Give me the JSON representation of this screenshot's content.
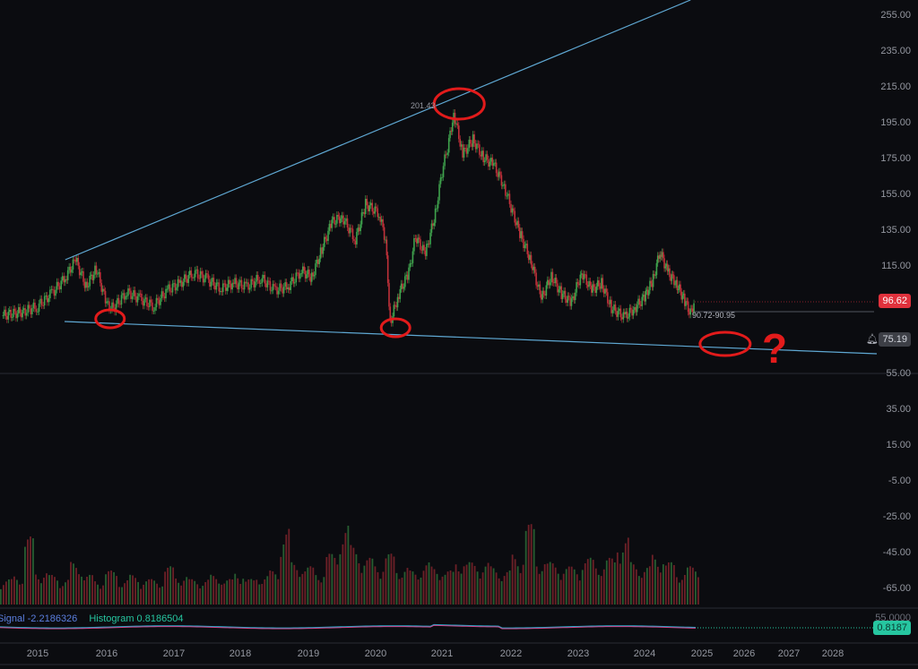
{
  "chart_data": {
    "type": "candlestick",
    "title": "",
    "y_axis": {
      "ticks": [
        "255.00",
        "235.00",
        "215.00",
        "195.00",
        "175.00",
        "155.00",
        "135.00",
        "115.00",
        "75.19",
        "55.00",
        "35.00",
        "15.00",
        "-5.00",
        "-25.00",
        "-45.00",
        "-65.00"
      ],
      "range": [
        -75,
        265
      ]
    },
    "y_tick_values": [
      255,
      235,
      215,
      195,
      175,
      155,
      135,
      115,
      95,
      75,
      55,
      35,
      15,
      -5,
      -25,
      -45,
      -65
    ],
    "x_axis": {
      "ticks": [
        "2015",
        "2016",
        "2017",
        "2018",
        "2019",
        "2020",
        "2021",
        "2022",
        "2023",
        "2024",
        "2025",
        "2026",
        "2027",
        "2028"
      ]
    },
    "price_series": [
      [
        2014.5,
        88
      ],
      [
        2014.8,
        90
      ],
      [
        2015.0,
        93
      ],
      [
        2015.2,
        100
      ],
      [
        2015.4,
        109
      ],
      [
        2015.55,
        119
      ],
      [
        2015.7,
        104
      ],
      [
        2015.85,
        114
      ],
      [
        2016.0,
        94
      ],
      [
        2016.1,
        92
      ],
      [
        2016.3,
        101
      ],
      [
        2016.5,
        97
      ],
      [
        2016.7,
        93
      ],
      [
        2016.9,
        102
      ],
      [
        2017.1,
        106
      ],
      [
        2017.3,
        112
      ],
      [
        2017.5,
        108
      ],
      [
        2017.7,
        103
      ],
      [
        2017.9,
        106
      ],
      [
        2018.1,
        104
      ],
      [
        2018.3,
        109
      ],
      [
        2018.5,
        102
      ],
      [
        2018.7,
        104
      ],
      [
        2018.9,
        113
      ],
      [
        2019.05,
        109
      ],
      [
        2019.2,
        125
      ],
      [
        2019.35,
        140
      ],
      [
        2019.5,
        143
      ],
      [
        2019.7,
        130
      ],
      [
        2019.85,
        150
      ],
      [
        2020.05,
        145
      ],
      [
        2020.15,
        130
      ],
      [
        2020.22,
        84
      ],
      [
        2020.35,
        100
      ],
      [
        2020.5,
        112
      ],
      [
        2020.6,
        132
      ],
      [
        2020.75,
        122
      ],
      [
        2020.9,
        145
      ],
      [
        2021.0,
        168
      ],
      [
        2021.1,
        185
      ],
      [
        2021.17,
        201
      ],
      [
        2021.3,
        178
      ],
      [
        2021.45,
        186
      ],
      [
        2021.6,
        176
      ],
      [
        2021.75,
        172
      ],
      [
        2021.9,
        160
      ],
      [
        2022.0,
        148
      ],
      [
        2022.15,
        132
      ],
      [
        2022.3,
        118
      ],
      [
        2022.45,
        97
      ],
      [
        2022.6,
        110
      ],
      [
        2022.75,
        100
      ],
      [
        2022.9,
        95
      ],
      [
        2023.05,
        112
      ],
      [
        2023.2,
        102
      ],
      [
        2023.35,
        106
      ],
      [
        2023.5,
        92
      ],
      [
        2023.7,
        87
      ],
      [
        2023.85,
        92
      ],
      [
        2024.0,
        98
      ],
      [
        2024.15,
        108
      ],
      [
        2024.27,
        124
      ],
      [
        2024.4,
        112
      ],
      [
        2024.55,
        106
      ],
      [
        2024.7,
        96
      ],
      [
        2024.8,
        89
      ],
      [
        2024.88,
        96.62
      ]
    ],
    "volume_relative": [
      0.3,
      0.35,
      0.8,
      0.4,
      0.35,
      0.3,
      0.5,
      0.35,
      0.3,
      0.4,
      0.3,
      0.35,
      0.3,
      0.3,
      0.45,
      0.35,
      0.3,
      0.3,
      0.35,
      0.3,
      0.4,
      0.3,
      0.35,
      0.4,
      0.9,
      0.5,
      0.45,
      0.4,
      0.6,
      0.95,
      0.7,
      0.55,
      0.5,
      0.6,
      0.45,
      0.4,
      0.5,
      0.45,
      0.4,
      0.55,
      0.5,
      0.5,
      0.45,
      0.4,
      0.6,
      0.95,
      0.55,
      0.5,
      0.45,
      0.45,
      0.55,
      0.5,
      0.55,
      0.8,
      0.5,
      0.45,
      0.6,
      0.5,
      0.4,
      0.45
    ],
    "trendlines": [
      {
        "from": [
          2015.4,
          119
        ],
        "to": [
          2024.8,
          264
        ],
        "color": "#5fa8d3"
      },
      {
        "from": [
          2015.39,
          84.5
        ],
        "to": [
          2029.0,
          66.5
        ],
        "color": "#5fa8d3"
      }
    ],
    "annotations": [
      {
        "type": "ellipse",
        "at": [
          2021.25,
          206
        ],
        "color": "#e21b1b"
      },
      {
        "type": "ellipse",
        "at": [
          2016.05,
          86
        ],
        "color": "#e21b1b"
      },
      {
        "type": "ellipse",
        "at": [
          2020.3,
          81
        ],
        "color": "#e21b1b"
      },
      {
        "type": "ellipse",
        "at": [
          2025.55,
          72
        ],
        "color": "#e21b1b"
      }
    ],
    "peak_label": "201.43",
    "range_label": "90.72-90.95",
    "question_mark": "?",
    "last_price": "96.62",
    "alert_price": "75.19",
    "colors": {
      "up": "#3fa34d",
      "down": "#c0313a",
      "last_price": "#e0313c",
      "macd_value": "#26c6a0"
    }
  },
  "macd": {
    "signal_label": "Signal -2.2186326",
    "histogram_label": "Histogram 0.8186504",
    "value": "0.8187",
    "axis_label": "55.0000"
  }
}
